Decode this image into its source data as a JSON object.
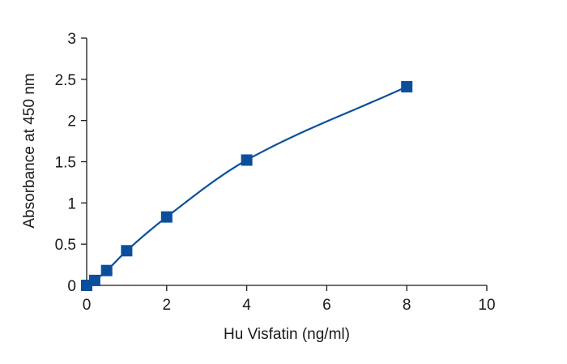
{
  "chart_data": {
    "type": "line",
    "xlabel": "Hu Visfatin (ng/ml)",
    "ylabel": "Absorbance at 450 nm",
    "xlim": [
      0,
      10
    ],
    "ylim": [
      0,
      3
    ],
    "xticks": [
      0,
      2,
      4,
      6,
      8,
      10
    ],
    "yticks": [
      0,
      0.5,
      1,
      1.5,
      2,
      2.5,
      3
    ],
    "grid": false,
    "series": [
      {
        "marker": "square",
        "line": "smooth fitted curve",
        "color": "#0b4f9c",
        "x": [
          0,
          0.2,
          0.5,
          1,
          2,
          4,
          8
        ],
        "y": [
          0.0,
          0.06,
          0.18,
          0.42,
          0.83,
          1.52,
          2.41
        ]
      }
    ]
  }
}
